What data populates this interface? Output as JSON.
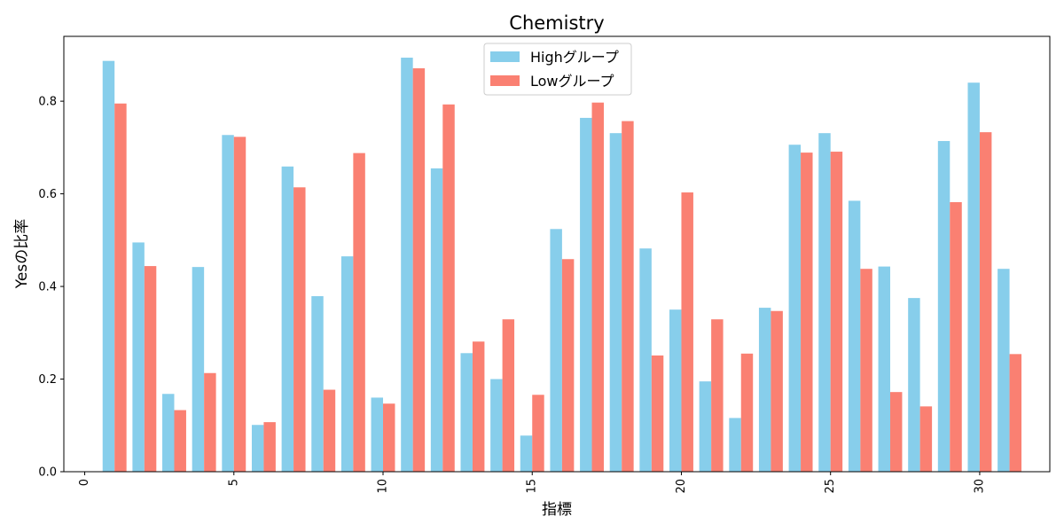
{
  "chart_data": {
    "type": "bar",
    "title": "Chemistry",
    "xlabel": "指標",
    "ylabel": "Yesの比率",
    "x": [
      1,
      2,
      3,
      4,
      5,
      6,
      7,
      8,
      9,
      10,
      11,
      12,
      13,
      14,
      15,
      16,
      17,
      18,
      19,
      20,
      21,
      22,
      23,
      24,
      25,
      26,
      27,
      28,
      29,
      30,
      31
    ],
    "xlim": [
      -0.7,
      32.35
    ],
    "ylim": [
      0.0,
      0.94
    ],
    "x_ticks": [
      0,
      5,
      10,
      15,
      20,
      25,
      30
    ],
    "y_ticks": [
      0.0,
      0.2,
      0.4,
      0.6,
      0.8
    ],
    "y_tick_labels": [
      "0.0",
      "0.2",
      "0.4",
      "0.6",
      "0.8"
    ],
    "x_tick_rotation": "vertical",
    "grid": false,
    "legend_position": "top-center",
    "series": [
      {
        "name": "Highグループ",
        "color": "#87CEEB",
        "values": [
          0.887,
          0.495,
          0.168,
          0.442,
          0.727,
          0.101,
          0.659,
          0.379,
          0.465,
          0.16,
          0.894,
          0.655,
          0.256,
          0.2,
          0.078,
          0.524,
          0.764,
          0.731,
          0.482,
          0.35,
          0.195,
          0.116,
          0.354,
          0.706,
          0.731,
          0.585,
          0.443,
          0.375,
          0.714,
          0.84,
          0.438
        ]
      },
      {
        "name": "Lowグループ",
        "color": "#FA8072",
        "values": [
          0.795,
          0.444,
          0.133,
          0.213,
          0.723,
          0.107,
          0.614,
          0.177,
          0.688,
          0.147,
          0.871,
          0.793,
          0.281,
          0.329,
          0.166,
          0.459,
          0.797,
          0.757,
          0.251,
          0.603,
          0.329,
          0.255,
          0.347,
          0.689,
          0.691,
          0.438,
          0.172,
          0.141,
          0.582,
          0.733,
          0.254
        ]
      }
    ]
  }
}
